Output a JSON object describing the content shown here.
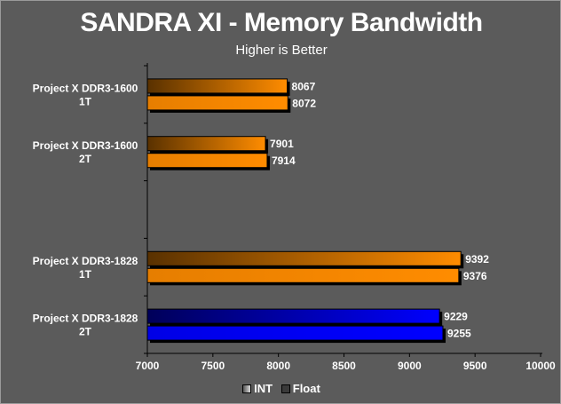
{
  "chart_data": {
    "type": "bar",
    "orientation": "horizontal",
    "title": "SANDRA XI - Memory Bandwidth",
    "subtitle": "Higher is Better",
    "categories": [
      "Project X DDR3-1600\n1T",
      "Project X DDR3-1600\n2T",
      "",
      "Project X DDR3-1828\n1T",
      "Project X DDR3-1828\n2T"
    ],
    "series": [
      {
        "name": "INT",
        "values": [
          8067,
          7901,
          null,
          9392,
          9229
        ]
      },
      {
        "name": "Float",
        "values": [
          8072,
          7914,
          null,
          9376,
          9255
        ]
      }
    ],
    "xlim": [
      7000,
      10000
    ],
    "xticks": [
      7000,
      7500,
      8000,
      8500,
      9000,
      9500,
      10000
    ],
    "bar_colors": [
      "#ff8c00",
      "#ff8c00",
      null,
      "#ff8c00",
      "#0000ff"
    ],
    "legend": {
      "position": "bottom"
    },
    "grid": false
  }
}
